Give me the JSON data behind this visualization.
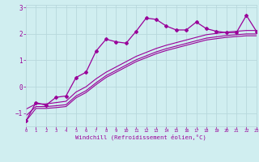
{
  "xlabel": "Windchill (Refroidissement éolien,°C)",
  "bg_color": "#d0eef0",
  "line_color": "#990099",
  "grid_color": "#b8d8dc",
  "x_data": [
    0,
    1,
    2,
    3,
    4,
    5,
    6,
    7,
    8,
    9,
    10,
    11,
    12,
    13,
    14,
    15,
    16,
    17,
    18,
    19,
    20,
    21,
    22,
    23
  ],
  "y_main": [
    -1.3,
    -0.6,
    -0.7,
    -0.4,
    -0.35,
    0.35,
    0.55,
    1.35,
    1.8,
    1.7,
    1.65,
    2.1,
    2.6,
    2.55,
    2.3,
    2.15,
    2.15,
    2.45,
    2.2,
    2.1,
    2.05,
    2.05,
    2.7,
    2.1
  ],
  "y_line1": [
    -0.85,
    -0.65,
    -0.65,
    -0.6,
    -0.55,
    -0.2,
    0.0,
    0.3,
    0.55,
    0.75,
    0.95,
    1.15,
    1.3,
    1.45,
    1.57,
    1.67,
    1.77,
    1.87,
    1.97,
    2.02,
    2.07,
    2.1,
    2.13,
    2.13
  ],
  "y_line2": [
    -1.1,
    -0.75,
    -0.75,
    -0.72,
    -0.68,
    -0.35,
    -0.15,
    0.15,
    0.42,
    0.62,
    0.82,
    1.02,
    1.17,
    1.32,
    1.44,
    1.54,
    1.64,
    1.74,
    1.84,
    1.89,
    1.94,
    1.97,
    2.0,
    2.0
  ],
  "y_line3": [
    -1.3,
    -0.82,
    -0.82,
    -0.79,
    -0.75,
    -0.42,
    -0.22,
    0.08,
    0.35,
    0.55,
    0.75,
    0.95,
    1.1,
    1.25,
    1.37,
    1.47,
    1.57,
    1.67,
    1.77,
    1.82,
    1.87,
    1.9,
    1.93,
    1.93
  ],
  "xlim": [
    0,
    23
  ],
  "ylim": [
    -1.5,
    3.1
  ],
  "yticks": [
    -1,
    0,
    1,
    2,
    3
  ],
  "xticks": [
    0,
    1,
    2,
    3,
    4,
    5,
    6,
    7,
    8,
    9,
    10,
    11,
    12,
    13,
    14,
    15,
    16,
    17,
    18,
    19,
    20,
    21,
    22,
    23
  ]
}
